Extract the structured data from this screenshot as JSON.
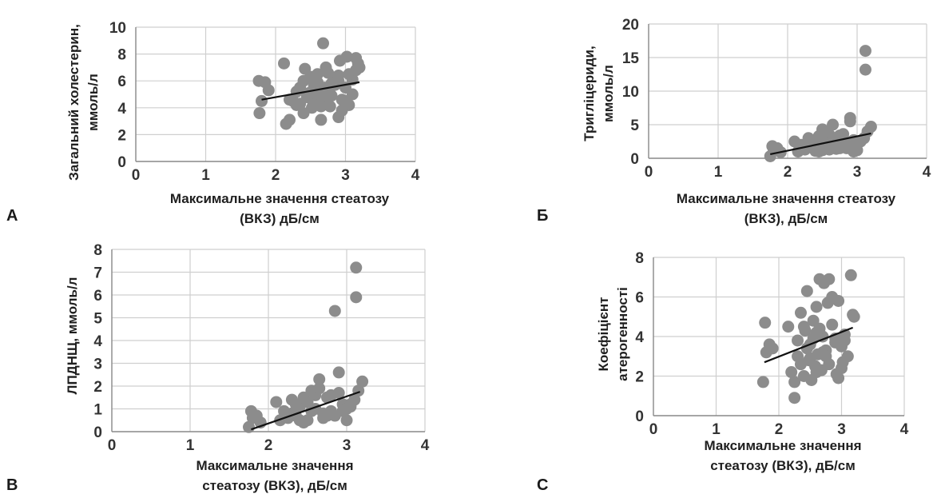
{
  "chart_data": [
    {
      "panel": "А",
      "type": "scatter",
      "xlabel": [
        "Максимальне значення стеатозу",
        "(ВКЗ) дБ/см"
      ],
      "ylabel": [
        "Загальний холестерин,",
        "ммоль/л"
      ],
      "xlim": [
        0,
        4
      ],
      "ylim": [
        0,
        10
      ],
      "xticks": [
        0,
        1,
        2,
        3,
        4
      ],
      "yticks": [
        0,
        2,
        4,
        6,
        8,
        10
      ],
      "grid": true,
      "trendline": [
        [
          1.8,
          4.6
        ],
        [
          3.2,
          5.9
        ]
      ],
      "x": [
        1.77,
        1.8,
        1.85,
        1.76,
        1.9,
        2.15,
        2.2,
        2.12,
        2.25,
        2.3,
        2.35,
        2.4,
        2.42,
        2.45,
        2.48,
        2.5,
        2.52,
        2.55,
        2.58,
        2.6,
        2.62,
        2.65,
        2.68,
        2.7,
        2.72,
        2.75,
        2.78,
        2.8,
        2.85,
        2.9,
        2.92,
        2.95,
        3.0,
        3.02,
        3.05,
        3.1,
        3.15,
        3.18,
        3.2,
        2.3,
        2.4,
        2.5,
        2.6,
        2.7,
        2.8,
        2.9,
        3.0,
        3.1,
        2.35,
        2.55,
        2.65,
        2.75,
        2.85,
        2.95,
        3.05,
        2.45,
        2.2,
        2.68,
        2.9,
        3.15
      ],
      "y": [
        3.6,
        4.5,
        5.9,
        6.0,
        5.3,
        2.8,
        3.1,
        7.3,
        4.5,
        4.2,
        5.5,
        3.6,
        6.9,
        4.8,
        5.1,
        6.3,
        4.0,
        5.6,
        4.4,
        6.5,
        5.0,
        3.1,
        8.8,
        4.7,
        7.0,
        5.3,
        4.1,
        5.8,
        6.2,
        3.3,
        7.5,
        4.6,
        5.5,
        7.8,
        4.2,
        6.1,
        7.7,
        7.3,
        7.0,
        5.2,
        6.0,
        4.7,
        5.9,
        5.5,
        4.9,
        6.4,
        4.5,
        5.0,
        4.3,
        5.4,
        4.1,
        6.6,
        5.7,
        3.8,
        6.5,
        4.8,
        4.6,
        5.1,
        6.0,
        6.8
      ]
    },
    {
      "panel": "Б",
      "type": "scatter",
      "xlabel": [
        "Максимальне значення стеатозу",
        "(ВКЗ), дБ/см"
      ],
      "ylabel": [
        "Тригліцериди,",
        "ммоль/л"
      ],
      "xlim": [
        0,
        4
      ],
      "ylim": [
        0,
        20
      ],
      "xticks": [
        0,
        1,
        2,
        3,
        4
      ],
      "yticks": [
        0,
        5,
        10,
        15,
        20
      ],
      "grid": true,
      "trendline": [
        [
          1.75,
          0.6
        ],
        [
          3.2,
          3.7
        ]
      ],
      "x": [
        1.75,
        1.78,
        1.8,
        1.85,
        1.9,
        2.1,
        2.15,
        2.2,
        2.25,
        2.3,
        2.35,
        2.4,
        2.45,
        2.5,
        2.55,
        2.6,
        2.65,
        2.7,
        2.75,
        2.8,
        2.85,
        2.9,
        2.95,
        3.0,
        3.05,
        3.1,
        3.15,
        3.2,
        2.3,
        2.4,
        2.5,
        2.6,
        2.7,
        2.8,
        2.9,
        3.0,
        2.5,
        2.6,
        2.9,
        3.12,
        3.12,
        2.35,
        2.45,
        2.55,
        2.65,
        2.75,
        2.85,
        2.95,
        3.05
      ],
      "y": [
        0.3,
        1.8,
        1.2,
        1.5,
        0.9,
        2.5,
        1.0,
        2.0,
        1.3,
        3.0,
        1.6,
        2.4,
        3.3,
        1.2,
        4.0,
        2.2,
        5.0,
        1.8,
        3.4,
        2.0,
        1.5,
        6.0,
        2.7,
        2.3,
        2.5,
        3.0,
        4.0,
        4.7,
        1.8,
        1.1,
        2.9,
        3.5,
        1.4,
        3.6,
        5.5,
        1.2,
        4.3,
        1.3,
        2.4,
        16.0,
        13.2,
        2.6,
        1.0,
        1.9,
        2.7,
        1.5,
        2.1,
        1.0,
        2.6
      ]
    },
    {
      "panel": "В",
      "type": "scatter",
      "xlabel": [
        "Максимальне значення",
        "стеатозу (ВКЗ), дБ/см"
      ],
      "ylabel": [
        "ЛПДНЩ, ммоль/л"
      ],
      "xlim": [
        0,
        4
      ],
      "ylim": [
        0,
        8
      ],
      "xticks": [
        0,
        1,
        2,
        3,
        4
      ],
      "yticks": [
        0,
        1,
        2,
        3,
        4,
        5,
        6,
        7,
        8
      ],
      "grid": true,
      "trendline": [
        [
          1.78,
          0.1
        ],
        [
          3.17,
          1.75
        ]
      ],
      "x": [
        1.75,
        1.78,
        1.8,
        1.85,
        1.9,
        2.1,
        2.15,
        2.2,
        2.25,
        2.3,
        2.35,
        2.4,
        2.45,
        2.5,
        2.55,
        2.6,
        2.65,
        2.7,
        2.75,
        2.8,
        2.85,
        2.9,
        2.95,
        3.0,
        3.05,
        3.1,
        3.15,
        3.2,
        2.3,
        2.4,
        2.5,
        2.6,
        2.7,
        2.8,
        2.9,
        3.0,
        2.65,
        2.85,
        3.12,
        3.12,
        2.35,
        2.45,
        2.55,
        2.75,
        2.95,
        3.05
      ],
      "y": [
        0.2,
        0.9,
        0.6,
        0.7,
        0.4,
        1.3,
        0.5,
        0.9,
        0.6,
        1.4,
        0.7,
        1.1,
        1.5,
        0.5,
        1.8,
        1.0,
        2.3,
        0.8,
        1.5,
        0.9,
        0.7,
        2.6,
        1.2,
        1.0,
        1.1,
        1.4,
        1.8,
        2.2,
        0.8,
        0.5,
        1.3,
        1.6,
        0.6,
        1.6,
        1.7,
        0.5,
        1.9,
        5.3,
        7.2,
        5.9,
        1.2,
        0.4,
        0.9,
        0.7,
        0.9,
        1.2
      ]
    },
    {
      "panel": "С",
      "type": "scatter",
      "xlabel": [
        "Максимальне значення",
        "стеатозу (ВКЗ), дБ/см"
      ],
      "ylabel": [
        "Коефіцієнт",
        "атерогенності"
      ],
      "xlim": [
        0,
        4
      ],
      "ylim": [
        0,
        8
      ],
      "xticks": [
        0,
        1,
        2,
        3,
        4
      ],
      "yticks": [
        0,
        2,
        4,
        6,
        8
      ],
      "grid": true,
      "trendline": [
        [
          1.77,
          2.7
        ],
        [
          3.18,
          4.45
        ]
      ],
      "x": [
        1.75,
        1.78,
        1.8,
        1.85,
        1.9,
        2.15,
        2.2,
        2.25,
        2.3,
        2.35,
        2.4,
        2.42,
        2.45,
        2.48,
        2.5,
        2.52,
        2.55,
        2.58,
        2.6,
        2.62,
        2.65,
        2.68,
        2.7,
        2.72,
        2.75,
        2.78,
        2.8,
        2.85,
        2.9,
        2.92,
        2.95,
        3.0,
        3.02,
        3.05,
        3.1,
        3.15,
        3.18,
        3.2,
        2.3,
        2.4,
        2.5,
        2.6,
        2.7,
        2.8,
        2.9,
        3.0,
        2.35,
        2.55,
        2.65,
        2.75,
        2.85,
        2.95,
        3.05,
        2.25,
        2.45,
        2.6
      ],
      "y": [
        1.7,
        4.7,
        3.2,
        3.6,
        3.4,
        4.5,
        2.2,
        0.9,
        3.0,
        5.2,
        2.0,
        4.3,
        6.3,
        2.8,
        3.6,
        1.8,
        4.8,
        2.5,
        5.5,
        3.1,
        6.9,
        2.3,
        4.0,
        6.7,
        3.3,
        5.7,
        2.6,
        6.0,
        3.9,
        2.1,
        5.8,
        3.5,
        2.7,
        4.1,
        3.0,
        7.1,
        5.1,
        5.0,
        3.8,
        4.5,
        2.9,
        4.2,
        3.2,
        6.9,
        3.7,
        2.4,
        2.6,
        3.9,
        4.4,
        3.0,
        4.6,
        1.9,
        3.8,
        1.7,
        3.4,
        2.2
      ]
    }
  ]
}
